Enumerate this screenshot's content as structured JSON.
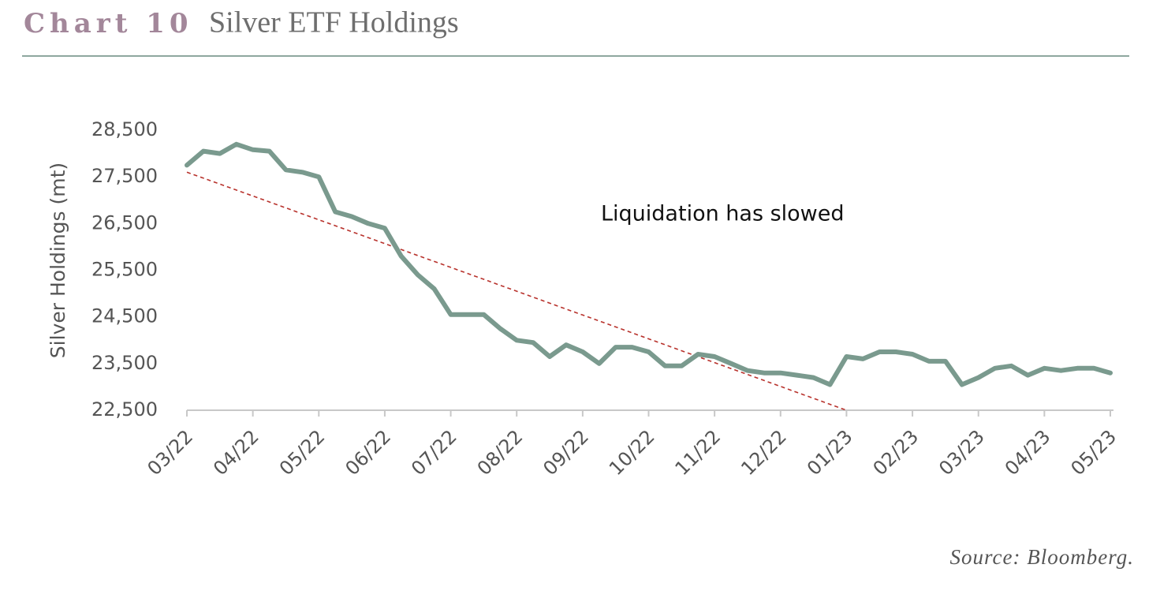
{
  "chart_data": {
    "type": "line",
    "title_label": "Chart 10",
    "title": "Silver ETF Holdings",
    "y_label": "Silver Holdings (mt)",
    "annotation": "Liquidation has slowed",
    "source": "Source: Bloomberg.",
    "categories": [
      "03/22",
      null,
      null,
      null,
      "04/22",
      null,
      null,
      null,
      "05/22",
      null,
      null,
      null,
      "06/22",
      null,
      null,
      null,
      "07/22",
      null,
      null,
      null,
      "08/22",
      null,
      null,
      null,
      "09/22",
      null,
      null,
      null,
      "10/22",
      null,
      null,
      null,
      "11/22",
      null,
      null,
      null,
      "12/22",
      null,
      null,
      null,
      "01/23",
      null,
      null,
      null,
      "02/23",
      null,
      null,
      null,
      "03/23",
      null,
      null,
      null,
      "04/23",
      null,
      null,
      null,
      "05/23"
    ],
    "series": [
      {
        "color": "#7a9a8e",
        "values": [
          27750,
          28050,
          28000,
          28200,
          28080,
          28050,
          27650,
          27600,
          27500,
          26750,
          26650,
          26500,
          26400,
          25800,
          25400,
          25100,
          24550,
          24550,
          24550,
          24250,
          24000,
          23950,
          23650,
          23900,
          23750,
          23500,
          23850,
          23850,
          23750,
          23450,
          23450,
          23700,
          23650,
          23500,
          23350,
          23300,
          23300,
          23250,
          23200,
          23050,
          23650,
          23600,
          23750,
          23750,
          23700,
          23550,
          23550,
          23050,
          23200,
          23400,
          23450,
          23250,
          23400,
          23350,
          23400,
          23400,
          23300
        ]
      }
    ],
    "trend": {
      "color": "#b8322c",
      "values": [
        27600,
        27472.5,
        27345,
        27217.5,
        27090,
        26962.5,
        26835,
        26707.5,
        26580,
        26452.5,
        26325,
        26197.5,
        26070,
        25942.5,
        25815,
        25687.5,
        25560,
        25432.5,
        25305,
        25177.5,
        25050,
        24922.5,
        24795,
        24667.5,
        24540,
        24412.5,
        24285,
        24157.5,
        24030,
        23902.5,
        23775,
        23647.5,
        23520,
        23392.5,
        23265,
        23137.5,
        23010,
        22882.5,
        22755,
        22627.5,
        22500,
        null,
        null,
        null,
        null,
        null,
        null,
        null,
        null,
        null,
        null,
        null,
        null,
        null,
        null,
        null,
        null
      ]
    },
    "ylim": [
      22500,
      28500
    ],
    "yticks": [
      {
        "value": 22500,
        "label": "22,500"
      },
      {
        "value": 23500,
        "label": "23,500"
      },
      {
        "value": 24500,
        "label": "24,500"
      },
      {
        "value": 25500,
        "label": "25,500"
      },
      {
        "value": 26500,
        "label": "26,500"
      },
      {
        "value": 27500,
        "label": "27,500"
      },
      {
        "value": 28500,
        "label": "28,500"
      }
    ]
  }
}
